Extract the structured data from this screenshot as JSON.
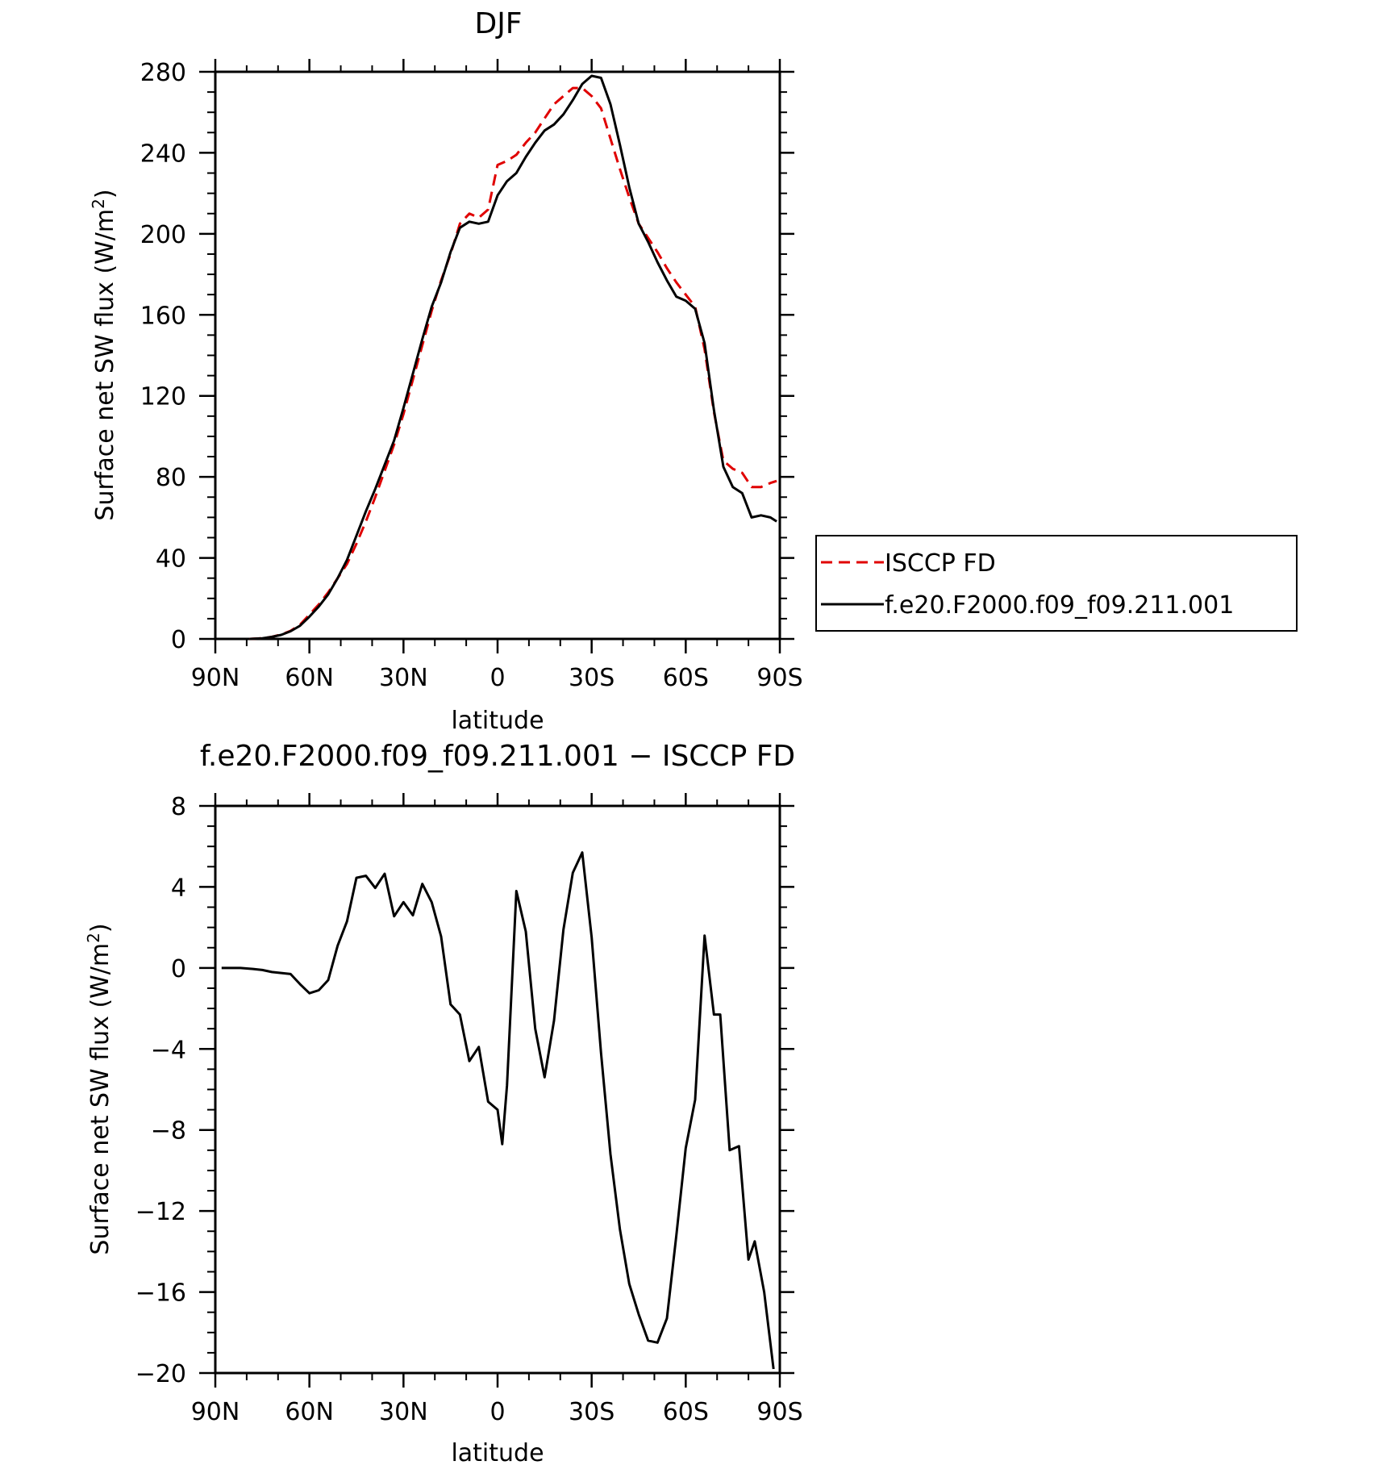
{
  "chart_data": [
    {
      "type": "line",
      "title": "DJF",
      "xlabel": "latitude",
      "ylabel": "Surface net SW flux (W/m²)",
      "ylabel_parts": {
        "before": "Surface net SW flux (W/m",
        "sup": "2",
        "after": ")"
      },
      "xlim": [
        90,
        -90
      ],
      "ylim": [
        0,
        280
      ],
      "x_ticks": [
        90,
        60,
        30,
        0,
        -30,
        -60,
        -90
      ],
      "x_tick_labels": [
        "90N",
        "60N",
        "30N",
        "0",
        "30S",
        "60S",
        "90S"
      ],
      "y_ticks": [
        0,
        40,
        80,
        120,
        160,
        200,
        240,
        280
      ],
      "y_tick_labels": [
        "0",
        "40",
        "80",
        "120",
        "160",
        "200",
        "240",
        "280"
      ],
      "grid": false,
      "legend": {
        "placement": "right",
        "entries": [
          "ISCCP FD",
          "f.e20.F2000.f09_f09.211.001"
        ]
      },
      "series": [
        {
          "name": "ISCCP FD",
          "color": "#e00000",
          "dash": true,
          "x": [
            79,
            75,
            72,
            69,
            66,
            63,
            60,
            57,
            54,
            51,
            48,
            45,
            42,
            39,
            36,
            33,
            30,
            27,
            24,
            21,
            18,
            15,
            12,
            9,
            6,
            3,
            0,
            -3,
            -6,
            -9,
            -12,
            -15,
            -18,
            -21,
            -24,
            -27,
            -30,
            -33,
            -36,
            -39,
            -42,
            -45,
            -48,
            -51,
            -54,
            -57,
            -60,
            -63,
            -66,
            -69,
            -72,
            -75,
            -78,
            -81,
            -84,
            -87,
            -89
          ],
          "y": [
            0,
            0.3,
            1,
            2.2,
            4,
            7,
            12,
            17,
            23,
            30,
            37,
            47,
            58,
            70,
            83,
            96,
            111,
            128,
            145,
            162,
            177,
            190,
            205,
            210,
            208,
            212,
            234,
            236,
            239,
            245,
            250,
            257,
            264,
            268,
            272,
            272,
            268,
            262,
            247,
            232,
            218,
            205,
            198,
            191,
            183,
            176,
            170,
            164,
            143,
            112,
            88,
            84,
            82,
            75,
            75,
            77,
            78
          ]
        },
        {
          "name": "f.e20.F2000.f09_f09.211.001",
          "color": "#000000",
          "dash": false,
          "x": [
            79,
            75,
            72,
            69,
            66,
            63,
            60,
            57,
            54,
            51,
            48,
            45,
            42,
            39,
            36,
            33,
            30,
            27,
            24,
            21,
            18,
            15,
            12,
            9,
            6,
            3,
            0,
            -3,
            -6,
            -9,
            -12,
            -15,
            -18,
            -21,
            -24,
            -27,
            -30,
            -33,
            -36,
            -39,
            -42,
            -45,
            -48,
            -51,
            -54,
            -57,
            -60,
            -63,
            -66,
            -69,
            -72,
            -75,
            -78,
            -81,
            -84,
            -87,
            -89
          ],
          "y": [
            0,
            0.3,
            1,
            2,
            3.8,
            6.5,
            11,
            16,
            22,
            30,
            39,
            51,
            63,
            74,
            86,
            98,
            114,
            131,
            148,
            164,
            176,
            191,
            203,
            206,
            205,
            206,
            219,
            226,
            230,
            238,
            245,
            251,
            254,
            259,
            266,
            274,
            278,
            277,
            264,
            244,
            223,
            205,
            196,
            186,
            177,
            169,
            167,
            163,
            146,
            113,
            85,
            75,
            72,
            60,
            61,
            60,
            58
          ]
        }
      ]
    },
    {
      "type": "line",
      "title": "f.e20.F2000.f09_f09.211.001 − ISCCP FD",
      "xlabel": "latitude",
      "ylabel": "Surface net SW flux (W/m²)",
      "ylabel_parts": {
        "before": "Surface net SW flux (W/m",
        "sup": "2",
        "after": ")"
      },
      "xlim": [
        90,
        -90
      ],
      "ylim": [
        -20,
        8
      ],
      "x_ticks": [
        90,
        60,
        30,
        0,
        -30,
        -60,
        -90
      ],
      "x_tick_labels": [
        "90N",
        "60N",
        "30N",
        "0",
        "30S",
        "60S",
        "90S"
      ],
      "y_ticks": [
        -20,
        -16,
        -12,
        -8,
        -4,
        0,
        4,
        8
      ],
      "y_tick_labels": [
        "−20",
        "−16",
        "−12",
        "−8",
        "−4",
        "0",
        "4",
        "8"
      ],
      "grid": false,
      "series": [
        {
          "color": "#000000",
          "dash": false,
          "x": [
            88,
            82,
            78,
            75,
            72,
            69,
            66,
            63,
            60,
            57,
            54,
            51,
            48,
            45,
            42,
            39,
            36,
            33,
            30,
            27,
            24,
            21,
            18,
            15,
            12,
            9,
            6,
            3,
            0,
            -1.5,
            -3,
            -6,
            -9,
            -12,
            -15,
            -18,
            -21,
            -24,
            -27,
            -30,
            -33,
            -36,
            -39,
            -42,
            -45,
            -48,
            -51,
            -54,
            -57,
            -60,
            -63,
            -66,
            -69,
            -71,
            -74,
            -77,
            -80,
            -82,
            -85,
            -88
          ],
          "y": [
            0,
            0,
            -0.05,
            -0.1,
            -0.2,
            -0.25,
            -0.3,
            -0.8,
            -1.25,
            -1.1,
            -0.6,
            1.1,
            2.3,
            4.45,
            4.55,
            3.95,
            4.65,
            2.55,
            3.25,
            2.6,
            4.15,
            3.25,
            1.55,
            -1.8,
            -2.3,
            -4.6,
            -3.9,
            -6.6,
            -7.0,
            -8.7,
            -5.8,
            3.8,
            1.8,
            -3.0,
            -5.4,
            -2.6,
            1.9,
            4.7,
            5.7,
            1.5,
            -4.2,
            -9.2,
            -12.9,
            -15.6,
            -17.1,
            -18.4,
            -18.5,
            -17.3,
            -13.2,
            -8.9,
            -6.5,
            1.6,
            -2.3,
            -2.3,
            -9.0,
            -8.8,
            -14.4,
            -13.5,
            -16.0,
            -19.8
          ]
        }
      ]
    }
  ]
}
